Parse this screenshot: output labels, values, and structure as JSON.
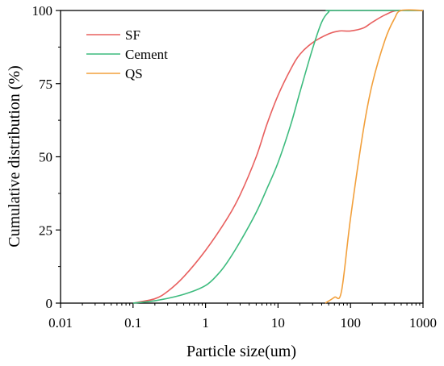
{
  "chart_data": {
    "type": "line",
    "xlabel": "Particle size(um)",
    "ylabel": "Cumulative distribution (%)",
    "x_scale": "log",
    "xlim": [
      0.01,
      1000
    ],
    "ylim": [
      0,
      100
    ],
    "x_ticks": [
      "0.01",
      "0.1",
      "1",
      "10",
      "100",
      "1000"
    ],
    "x_tick_values": [
      0.01,
      0.1,
      1,
      10,
      100,
      1000
    ],
    "y_ticks": [
      "0",
      "25",
      "50",
      "75",
      "100"
    ],
    "y_tick_values": [
      0,
      25,
      50,
      75,
      100
    ],
    "grid": false,
    "legend_position": "top-left",
    "series": [
      {
        "name": "SF",
        "color": "#e8605f",
        "points": [
          [
            0.1,
            0
          ],
          [
            0.2,
            1.5
          ],
          [
            0.3,
            4
          ],
          [
            0.5,
            9
          ],
          [
            1,
            18
          ],
          [
            2,
            29
          ],
          [
            3,
            37
          ],
          [
            5,
            50
          ],
          [
            7,
            61
          ],
          [
            10,
            71
          ],
          [
            15,
            80
          ],
          [
            20,
            85
          ],
          [
            30,
            89
          ],
          [
            50,
            92
          ],
          [
            70,
            93
          ],
          [
            100,
            93
          ],
          [
            150,
            94
          ],
          [
            200,
            96
          ],
          [
            300,
            98.5
          ],
          [
            450,
            100
          ],
          [
            1000,
            100
          ]
        ]
      },
      {
        "name": "Cement",
        "color": "#3dbb7e",
        "points": [
          [
            0.1,
            0
          ],
          [
            0.2,
            0.8
          ],
          [
            0.5,
            3
          ],
          [
            1,
            6
          ],
          [
            1.5,
            10
          ],
          [
            2,
            14
          ],
          [
            3,
            21
          ],
          [
            5,
            31
          ],
          [
            7,
            39
          ],
          [
            10,
            48
          ],
          [
            15,
            61
          ],
          [
            20,
            72
          ],
          [
            30,
            87
          ],
          [
            40,
            96
          ],
          [
            50,
            99.5
          ],
          [
            60,
            100
          ],
          [
            1000,
            100
          ]
        ]
      },
      {
        "name": "QS",
        "color": "#f2a03c",
        "points": [
          [
            45,
            0
          ],
          [
            60,
            2
          ],
          [
            75,
            4
          ],
          [
            100,
            29
          ],
          [
            150,
            59
          ],
          [
            200,
            75
          ],
          [
            300,
            90
          ],
          [
            400,
            97
          ],
          [
            500,
            100
          ],
          [
            1000,
            100
          ]
        ]
      }
    ]
  }
}
